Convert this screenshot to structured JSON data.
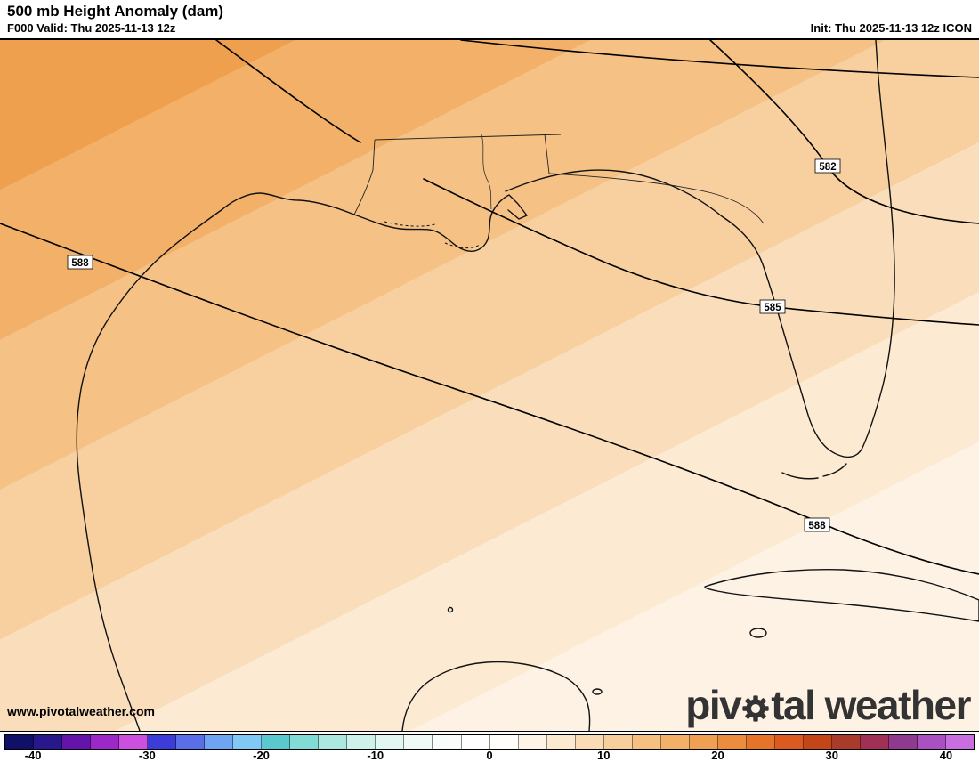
{
  "header": {
    "title": "500 mb Height Anomaly (dam)",
    "valid": "F000 Valid: Thu 2025-11-13 12z",
    "init": "Init: Thu 2025-11-13 12z ICON"
  },
  "map": {
    "watermark": "www.pivotalweather.com",
    "contour_labels": [
      "588",
      "582",
      "585",
      "588"
    ],
    "shading_bands": [
      "#efa04e",
      "#f2b068",
      "#f5c184",
      "#f8d0a0",
      "#fadebc",
      "#fcead2",
      "#fdf2e4"
    ]
  },
  "logo": {
    "part1": "piv",
    "part2": "tal weather"
  },
  "colorbar": {
    "min": -40,
    "max": 40,
    "step": 2.5,
    "ticks": [
      "-40",
      "-30",
      "-20",
      "-10",
      "0",
      "10",
      "20",
      "30",
      "40"
    ],
    "cell_colors": [
      "#101068",
      "#28188c",
      "#6414aa",
      "#9c28c8",
      "#cc50e0",
      "#3c3cd8",
      "#5a6ee8",
      "#6ea4f2",
      "#82c8f6",
      "#5ac8cc",
      "#82dcd6",
      "#aae8e0",
      "#cef2ea",
      "#e2f6f2",
      "#effaf7",
      "#f8fcfb",
      "#ffffff",
      "#fffefb",
      "#fdf4e6",
      "#fbe9d0",
      "#f9dcb6",
      "#f7cf9c",
      "#f5c082",
      "#f2b068",
      "#f0a052",
      "#eb8c3e",
      "#e5742a",
      "#da5a20",
      "#c44618",
      "#aa3a2a",
      "#a03055",
      "#8f3a8f",
      "#aa50c3",
      "#c86ee0"
    ]
  }
}
